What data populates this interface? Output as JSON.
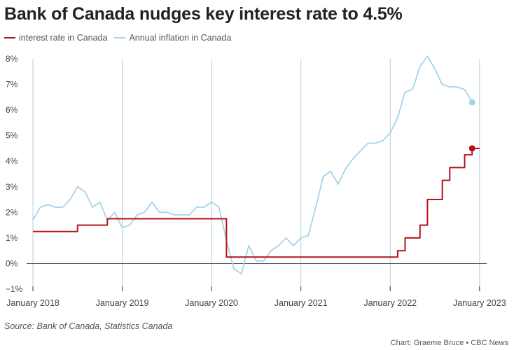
{
  "colors": {
    "rate": "#b5121b",
    "inflation": "#a7d3e6",
    "grid": "#b8cdd8",
    "zero_line": "#555555",
    "tick_text": "#444444"
  },
  "chart_data": {
    "type": "line",
    "title": "Bank of Canada nudges key interest rate to 4.5%",
    "xlabel": "",
    "ylabel": "",
    "ylim": [
      -1,
      8
    ],
    "xlim": [
      0,
      60.8
    ],
    "y_ticks": [
      -1,
      0,
      1,
      2,
      3,
      4,
      5,
      6,
      7,
      8
    ],
    "y_tick_labels": [
      "−1%",
      "0%",
      "1%",
      "2%",
      "3%",
      "4%",
      "5%",
      "6%",
      "7%",
      "8%"
    ],
    "x_ticks": [
      0,
      12,
      24,
      36,
      48,
      60
    ],
    "x_tick_labels": [
      "January 2018",
      "January 2019",
      "January 2020",
      "January 2021",
      "January 2022",
      "January 2023"
    ],
    "legend_position": "top-left",
    "series": [
      {
        "name": "interest rate in Canada",
        "color": "#b5121b",
        "line_style": "step",
        "end_marker": true,
        "x": [
          0,
          5,
          6,
          8,
          9,
          10,
          11,
          12,
          13,
          14,
          15,
          16,
          17,
          18,
          19,
          20,
          21,
          22,
          23,
          24,
          25,
          25.5,
          26,
          36,
          48,
          49,
          50,
          51,
          52,
          53,
          54,
          55,
          56,
          57,
          58,
          59,
          60
        ],
        "values": [
          1.25,
          1.25,
          1.5,
          1.5,
          1.5,
          1.75,
          1.75,
          1.75,
          1.75,
          1.75,
          1.75,
          1.75,
          1.75,
          1.75,
          1.75,
          1.75,
          1.75,
          1.75,
          1.75,
          1.75,
          1.75,
          1.75,
          0.25,
          0.25,
          0.25,
          0.5,
          1.0,
          1.0,
          1.5,
          2.5,
          2.5,
          3.25,
          3.75,
          3.75,
          4.25,
          4.5,
          4.5
        ]
      },
      {
        "name": "Annual inflation in Canada",
        "color": "#a7d3e6",
        "line_style": "line",
        "end_marker": true,
        "x": [
          0,
          1,
          2,
          3,
          4,
          5,
          6,
          7,
          8,
          9,
          10,
          11,
          12,
          13,
          14,
          15,
          16,
          17,
          18,
          19,
          20,
          21,
          22,
          23,
          24,
          25,
          26,
          27,
          28,
          29,
          30,
          31,
          32,
          33,
          34,
          35,
          36,
          37,
          38,
          39,
          40,
          41,
          42,
          43,
          44,
          45,
          46,
          47,
          48,
          49,
          50,
          51,
          52,
          53,
          54,
          55,
          56,
          57,
          58,
          59
        ],
        "values": [
          1.7,
          2.2,
          2.3,
          2.2,
          2.2,
          2.5,
          3.0,
          2.8,
          2.2,
          2.4,
          1.7,
          2.0,
          1.4,
          1.5,
          1.9,
          2.0,
          2.4,
          2.0,
          2.0,
          1.9,
          1.9,
          1.9,
          2.2,
          2.2,
          2.4,
          2.2,
          0.9,
          -0.2,
          -0.4,
          0.7,
          0.1,
          0.1,
          0.5,
          0.7,
          1.0,
          0.7,
          1.0,
          1.1,
          2.2,
          3.4,
          3.6,
          3.1,
          3.7,
          4.1,
          4.4,
          4.7,
          4.7,
          4.8,
          5.1,
          5.7,
          6.7,
          6.8,
          7.7,
          8.1,
          7.6,
          7.0,
          6.9,
          6.9,
          6.8,
          6.3
        ]
      }
    ]
  },
  "source": "Source: Bank of Canada, Statistics Canada",
  "credit": "Chart: Graeme Bruce • CBC News"
}
